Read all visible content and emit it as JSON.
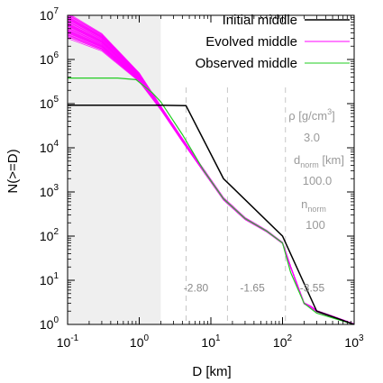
{
  "chart_data": {
    "type": "line",
    "xlabel": "D [km]",
    "ylabel": "N(>=D)",
    "x_scale": "log",
    "y_scale": "log",
    "xlim": [
      0.1,
      1000
    ],
    "ylim": [
      1,
      10000000
    ],
    "x_ticks": [
      {
        "value": 0.1,
        "base": "10",
        "exp": "-1"
      },
      {
        "value": 1,
        "base": "10",
        "exp": "0"
      },
      {
        "value": 10,
        "base": "10",
        "exp": "1"
      },
      {
        "value": 100,
        "base": "10",
        "exp": "2"
      },
      {
        "value": 1000,
        "base": "10",
        "exp": "3"
      }
    ],
    "y_ticks": [
      {
        "value": 1,
        "base": "10",
        "exp": "0"
      },
      {
        "value": 10,
        "base": "10",
        "exp": "1"
      },
      {
        "value": 100,
        "base": "10",
        "exp": "2"
      },
      {
        "value": 1000,
        "base": "10",
        "exp": "3"
      },
      {
        "value": 10000,
        "base": "10",
        "exp": "4"
      },
      {
        "value": 100000,
        "base": "10",
        "exp": "5"
      },
      {
        "value": 1000000,
        "base": "10",
        "exp": "6"
      },
      {
        "value": 10000000,
        "base": "10",
        "exp": "7"
      }
    ],
    "shaded_region": {
      "x": [
        0.1,
        2
      ],
      "color": "#efefef"
    },
    "legend_position": "top-right",
    "series": [
      {
        "name": "Initial middle",
        "color": "#000000",
        "x": [
          0.1,
          2,
          4.5,
          15,
          100,
          300,
          1000
        ],
        "y": [
          92000,
          92000,
          90000,
          2000,
          100,
          2,
          1
        ]
      },
      {
        "name": "Evolved middle",
        "color": "#ff00ff",
        "x": [
          0.1,
          0.3,
          1,
          2,
          4,
          8,
          15,
          30,
          60,
          100,
          130,
          200,
          250,
          300,
          500,
          1000
        ],
        "y": [
          6000000,
          2500000,
          400000,
          80000,
          15000,
          3000,
          700,
          250,
          130,
          70,
          20,
          3,
          2.5,
          2,
          1.5,
          1
        ],
        "ensemble_count": 40,
        "ensemble_spread_dex_small_d": 0.3
      },
      {
        "name": "Observed middle",
        "color": "#22cc22",
        "x": [
          0.1,
          0.5,
          0.9,
          1.5,
          2,
          4,
          8,
          15,
          30,
          60,
          100,
          130,
          200,
          300,
          500,
          1000
        ],
        "y": [
          380000,
          380000,
          350000,
          180000,
          110000,
          20000,
          3000,
          700,
          250,
          130,
          70,
          15,
          3,
          1.8,
          1.4,
          1
        ]
      }
    ],
    "reference_lines": [
      {
        "x": 4.5
      },
      {
        "x": 17
      },
      {
        "x": 110
      }
    ],
    "slope_labels": [
      {
        "text": "-2.80",
        "x": 6.2,
        "y": 5.5
      },
      {
        "text": "-1.65",
        "x": 38,
        "y": 5.5
      },
      {
        "text": "-3.55",
        "x": 260,
        "y": 5.5
      }
    ],
    "annotations": {
      "rho_label": "ρ [g/cm",
      "rho_unit_exp": "3",
      "rho_label_close": "]",
      "rho_value": "3.0",
      "dnorm_label": "d",
      "dnorm_sub": "norm",
      "dnorm_unit": " [km]",
      "dnorm_value": "100.0",
      "nnorm_label": "n",
      "nnorm_sub": "norm",
      "nnorm_value": "100"
    }
  }
}
